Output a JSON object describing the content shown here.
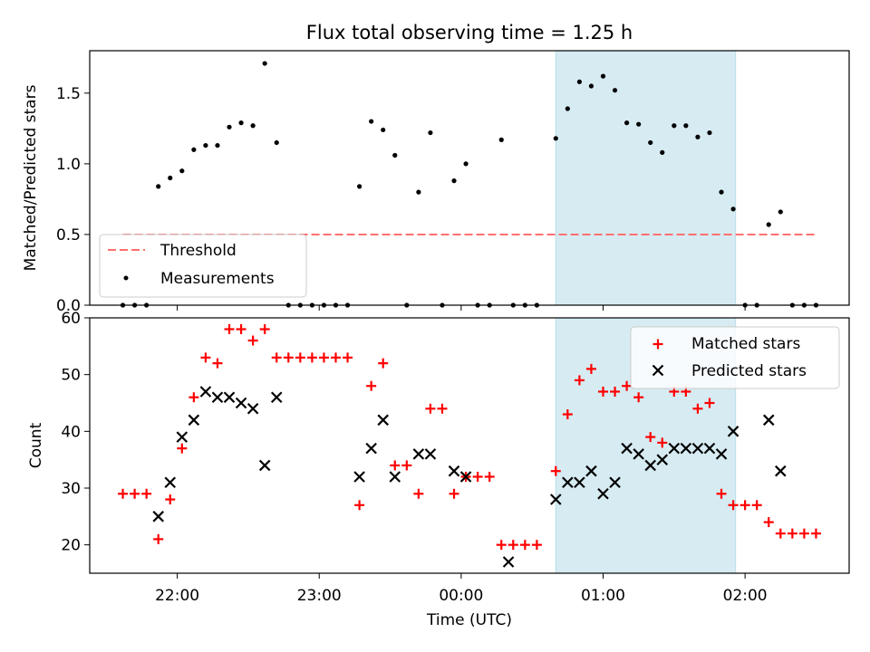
{
  "chart_data": [
    {
      "type": "scatter",
      "title": "Flux total observing time = 1.25 h",
      "ylabel": "Matched/Predicted stars",
      "ylim": [
        0,
        1.8
      ],
      "yticks": [
        "0.0",
        "0.5",
        "1.0",
        "1.5"
      ],
      "ytick_values": [
        0,
        0.5,
        1.0,
        1.5
      ],
      "shaded_region": {
        "start": "00:40",
        "end": "01:56",
        "color": "#add8e6"
      },
      "legend_position": "lower-left",
      "threshold": {
        "name": "Threshold",
        "value": 0.5,
        "x_start": "21:37",
        "x_end": "02:30",
        "color": "#ff6f6f"
      },
      "measurements": {
        "name": "Measurements",
        "color": "#000000",
        "points": [
          [
            "21:37",
            0.0
          ],
          [
            "21:42",
            0.0
          ],
          [
            "21:47",
            0.0
          ],
          [
            "21:52",
            0.84
          ],
          [
            "21:57",
            0.9
          ],
          [
            "22:02",
            0.95
          ],
          [
            "22:07",
            1.1
          ],
          [
            "22:12",
            1.13
          ],
          [
            "22:17",
            1.13
          ],
          [
            "22:22",
            1.26
          ],
          [
            "22:27",
            1.29
          ],
          [
            "22:32",
            1.27
          ],
          [
            "22:37",
            1.71
          ],
          [
            "22:42",
            1.15
          ],
          [
            "22:47",
            0.0
          ],
          [
            "22:52",
            0.0
          ],
          [
            "22:57",
            0.0
          ],
          [
            "23:02",
            0.0
          ],
          [
            "23:07",
            0.0
          ],
          [
            "23:12",
            0.0
          ],
          [
            "23:17",
            0.84
          ],
          [
            "23:22",
            1.3
          ],
          [
            "23:27",
            1.24
          ],
          [
            "23:32",
            1.06
          ],
          [
            "23:37",
            0.0
          ],
          [
            "23:42",
            0.8
          ],
          [
            "23:47",
            1.22
          ],
          [
            "23:52",
            0.0
          ],
          [
            "23:57",
            0.88
          ],
          [
            "00:02",
            1.0
          ],
          [
            "00:07",
            0.0
          ],
          [
            "00:12",
            0.0
          ],
          [
            "00:17",
            1.17
          ],
          [
            "00:22",
            0.0
          ],
          [
            "00:27",
            0.0
          ],
          [
            "00:32",
            0.0
          ],
          [
            "00:40",
            1.18
          ],
          [
            "00:45",
            1.39
          ],
          [
            "00:50",
            1.58
          ],
          [
            "00:55",
            1.55
          ],
          [
            "01:00",
            1.62
          ],
          [
            "01:05",
            1.52
          ],
          [
            "01:10",
            1.29
          ],
          [
            "01:15",
            1.28
          ],
          [
            "01:20",
            1.15
          ],
          [
            "01:25",
            1.08
          ],
          [
            "01:30",
            1.27
          ],
          [
            "01:35",
            1.27
          ],
          [
            "01:40",
            1.19
          ],
          [
            "01:45",
            1.22
          ],
          [
            "01:50",
            0.8
          ],
          [
            "01:55",
            0.68
          ],
          [
            "02:00",
            0.0
          ],
          [
            "02:05",
            0.0
          ],
          [
            "02:10",
            0.57
          ],
          [
            "02:15",
            0.66
          ],
          [
            "02:20",
            0.0
          ],
          [
            "02:25",
            0.0
          ],
          [
            "02:30",
            0.0
          ]
        ]
      }
    },
    {
      "type": "scatter",
      "xlabel": "Time (UTC)",
      "ylabel": "Count",
      "ylim": [
        15,
        60
      ],
      "yticks": [
        "20",
        "30",
        "40",
        "50",
        "60"
      ],
      "ytick_values": [
        20,
        30,
        40,
        50,
        60
      ],
      "xlim": [
        "21:23",
        "02:44"
      ],
      "xticks": [
        "22:00",
        "23:00",
        "00:00",
        "01:00",
        "02:00"
      ],
      "shaded_region": {
        "start": "00:40",
        "end": "01:56",
        "color": "#add8e6"
      },
      "legend_position": "upper-right",
      "series": [
        {
          "name": "Matched stars",
          "marker": "plus",
          "color": "#ff0000",
          "points": [
            [
              "21:37",
              29
            ],
            [
              "21:42",
              29
            ],
            [
              "21:47",
              29
            ],
            [
              "21:52",
              21
            ],
            [
              "21:57",
              28
            ],
            [
              "22:02",
              37
            ],
            [
              "22:07",
              46
            ],
            [
              "22:12",
              53
            ],
            [
              "22:17",
              52
            ],
            [
              "22:22",
              58
            ],
            [
              "22:27",
              58
            ],
            [
              "22:32",
              56
            ],
            [
              "22:37",
              58
            ],
            [
              "22:42",
              53
            ],
            [
              "22:47",
              53
            ],
            [
              "22:52",
              53
            ],
            [
              "22:57",
              53
            ],
            [
              "23:02",
              53
            ],
            [
              "23:07",
              53
            ],
            [
              "23:12",
              53
            ],
            [
              "23:17",
              27
            ],
            [
              "23:22",
              48
            ],
            [
              "23:27",
              52
            ],
            [
              "23:32",
              34
            ],
            [
              "23:37",
              34
            ],
            [
              "23:42",
              29
            ],
            [
              "23:47",
              44
            ],
            [
              "23:52",
              44
            ],
            [
              "23:57",
              29
            ],
            [
              "00:02",
              32
            ],
            [
              "00:07",
              32
            ],
            [
              "00:12",
              32
            ],
            [
              "00:17",
              20
            ],
            [
              "00:22",
              20
            ],
            [
              "00:27",
              20
            ],
            [
              "00:32",
              20
            ],
            [
              "00:40",
              33
            ],
            [
              "00:45",
              43
            ],
            [
              "00:50",
              49
            ],
            [
              "00:55",
              51
            ],
            [
              "01:00",
              47
            ],
            [
              "01:05",
              47
            ],
            [
              "01:10",
              48
            ],
            [
              "01:15",
              46
            ],
            [
              "01:20",
              39
            ],
            [
              "01:25",
              38
            ],
            [
              "01:30",
              47
            ],
            [
              "01:35",
              47
            ],
            [
              "01:40",
              44
            ],
            [
              "01:45",
              45
            ],
            [
              "01:50",
              29
            ],
            [
              "01:55",
              27
            ],
            [
              "02:00",
              27
            ],
            [
              "02:05",
              27
            ],
            [
              "02:10",
              24
            ],
            [
              "02:15",
              22
            ],
            [
              "02:20",
              22
            ],
            [
              "02:25",
              22
            ],
            [
              "02:30",
              22
            ]
          ]
        },
        {
          "name": "Predicted stars",
          "marker": "x",
          "color": "#000000",
          "points": [
            [
              "21:52",
              25
            ],
            [
              "21:57",
              31
            ],
            [
              "22:02",
              39
            ],
            [
              "22:07",
              42
            ],
            [
              "22:12",
              47
            ],
            [
              "22:17",
              46
            ],
            [
              "22:22",
              46
            ],
            [
              "22:27",
              45
            ],
            [
              "22:32",
              44
            ],
            [
              "22:37",
              34
            ],
            [
              "22:42",
              46
            ],
            [
              "23:17",
              32
            ],
            [
              "23:22",
              37
            ],
            [
              "23:27",
              42
            ],
            [
              "23:32",
              32
            ],
            [
              "23:42",
              36
            ],
            [
              "23:47",
              36
            ],
            [
              "23:57",
              33
            ],
            [
              "00:02",
              32
            ],
            [
              "00:20",
              17
            ],
            [
              "00:40",
              28
            ],
            [
              "00:45",
              31
            ],
            [
              "00:50",
              31
            ],
            [
              "00:55",
              33
            ],
            [
              "01:00",
              29
            ],
            [
              "01:05",
              31
            ],
            [
              "01:10",
              37
            ],
            [
              "01:15",
              36
            ],
            [
              "01:20",
              34
            ],
            [
              "01:25",
              35
            ],
            [
              "01:30",
              37
            ],
            [
              "01:35",
              37
            ],
            [
              "01:40",
              37
            ],
            [
              "01:45",
              37
            ],
            [
              "01:50",
              36
            ],
            [
              "01:55",
              40
            ],
            [
              "02:10",
              42
            ],
            [
              "02:15",
              33
            ]
          ]
        }
      ]
    }
  ]
}
